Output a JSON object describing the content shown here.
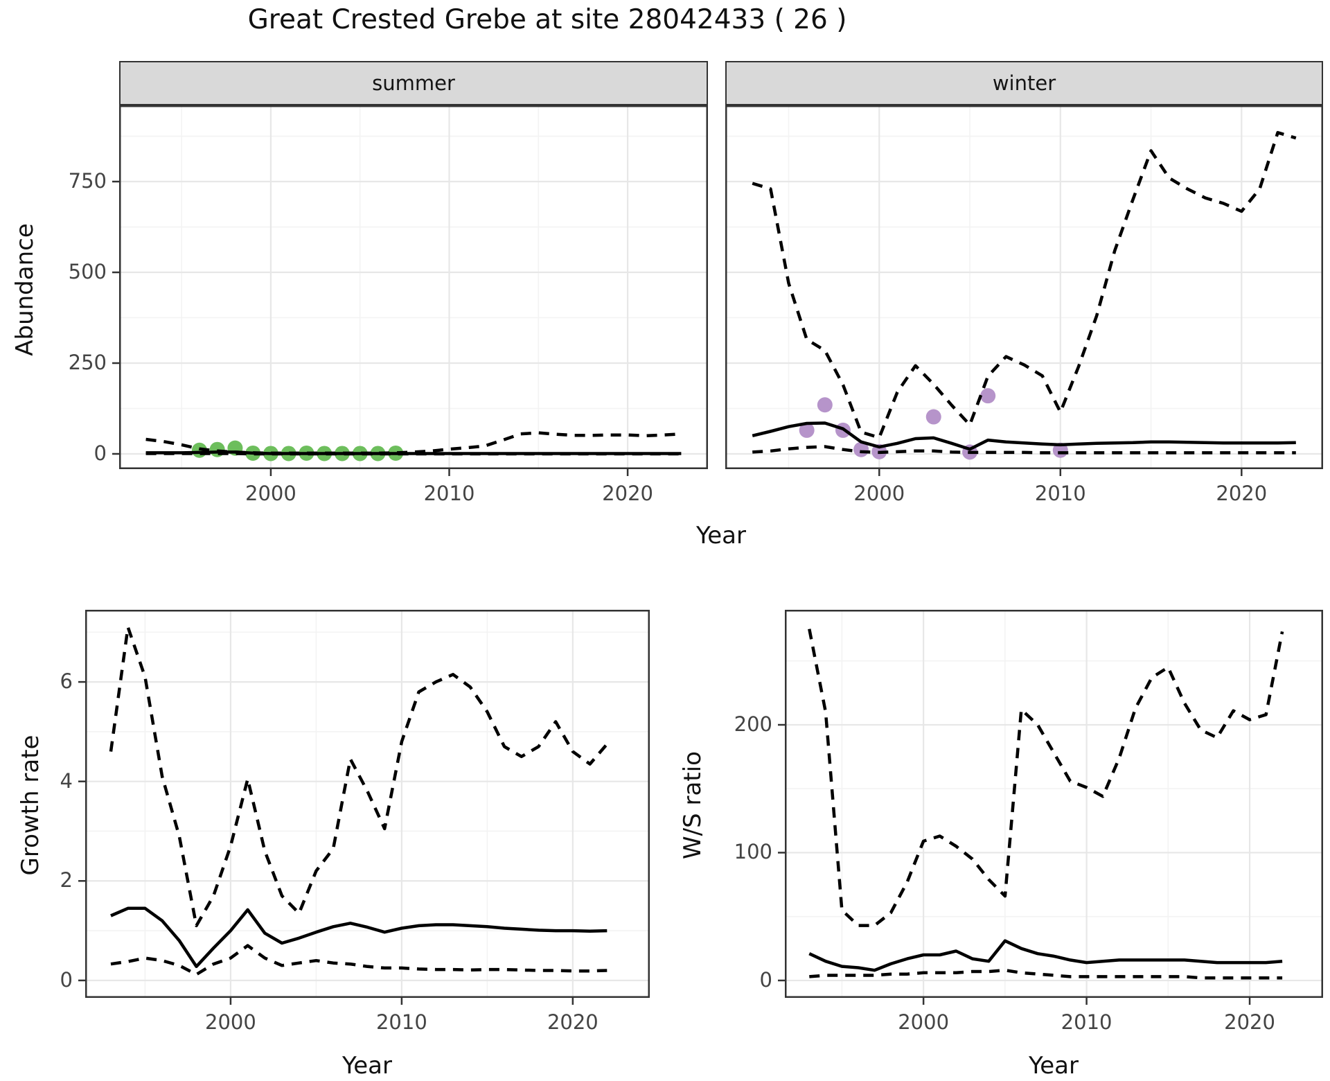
{
  "title": "Great Crested Grebe at site 28042433 ( 26 )",
  "facets": {
    "summer": "summer",
    "winter": "winter"
  },
  "axis_labels": {
    "y_top": "Abundance",
    "x": "Year",
    "y_growth": "Growth rate",
    "y_ws": "W/S ratio"
  },
  "colors": {
    "summer_points": "#6dbe5c",
    "winter_points": "#b694ca",
    "line": "#000000",
    "strip_bg": "#d9d9d9",
    "panel_border": "#333333",
    "grid_major": "#e7e7e7",
    "grid_minor": "#f3f3f3",
    "tick_mark": "#333333",
    "tick_label": "#444444"
  },
  "chart_data": [
    {
      "id": "summer",
      "type": "line",
      "facet": "summer",
      "title": "",
      "xlabel": "Year",
      "ylabel": "Abundance",
      "xlim": [
        1991.5,
        2024.5
      ],
      "ylim": [
        -42,
        960
      ],
      "x_ticks": [
        2000,
        2010,
        2020
      ],
      "x_minor": [
        1995,
        2005,
        2015
      ],
      "y_ticks": [
        0,
        250,
        500,
        750
      ],
      "y_minor": [
        125,
        375,
        625,
        875
      ],
      "y_labels_visible": true,
      "x": [
        1993,
        1994,
        1995,
        1996,
        1997,
        1998,
        1999,
        2000,
        2001,
        2002,
        2003,
        2004,
        2005,
        2006,
        2007,
        2008,
        2009,
        2010,
        2011,
        2012,
        2013,
        2014,
        2015,
        2016,
        2017,
        2018,
        2019,
        2020,
        2021,
        2022,
        2023
      ],
      "series": [
        {
          "name": "modelled median",
          "style": "solid",
          "values": [
            3,
            3,
            3,
            4,
            5,
            5,
            2,
            1,
            1,
            1,
            1,
            1,
            1,
            1,
            1,
            1,
            1,
            1,
            1,
            1,
            1,
            1,
            1,
            1,
            1,
            1,
            1,
            1,
            1,
            1,
            1
          ]
        },
        {
          "name": "upper credible interval",
          "style": "dashed",
          "values": [
            40,
            34,
            25,
            14,
            8,
            5,
            3,
            2,
            2,
            2,
            2,
            2,
            2,
            2,
            3,
            5,
            8,
            13,
            17,
            22,
            38,
            55,
            58,
            54,
            51,
            51,
            52,
            52,
            50,
            52,
            55
          ]
        },
        {
          "name": "lower credible interval",
          "style": "dashed",
          "values": [
            1,
            1,
            1,
            1,
            1,
            1,
            0,
            0,
            0,
            0,
            0,
            0,
            0,
            0,
            0,
            0,
            0,
            0,
            0,
            0,
            0,
            0,
            0,
            0,
            0,
            0,
            0,
            0,
            0,
            0,
            0
          ]
        }
      ],
      "points": {
        "name": "observed summer counts",
        "color_key": "summer_points",
        "x": [
          1996,
          1997,
          1998,
          1999,
          2000,
          2001,
          2002,
          2003,
          2004,
          2005,
          2006,
          2007
        ],
        "y": [
          10,
          12,
          16,
          2,
          1,
          1,
          2,
          1,
          1,
          1,
          1,
          2
        ]
      }
    },
    {
      "id": "winter",
      "type": "line",
      "facet": "winter",
      "title": "",
      "xlabel": "Year",
      "ylabel": "Abundance",
      "xlim": [
        1991.5,
        2024.5
      ],
      "ylim": [
        -42,
        960
      ],
      "x_ticks": [
        2000,
        2010,
        2020
      ],
      "x_minor": [
        1995,
        2005,
        2015
      ],
      "y_ticks": [
        0,
        250,
        500,
        750
      ],
      "y_minor": [
        125,
        375,
        625,
        875
      ],
      "y_labels_visible": false,
      "x": [
        1993,
        1994,
        1995,
        1996,
        1997,
        1998,
        1999,
        2000,
        2001,
        2002,
        2003,
        2004,
        2005,
        2006,
        2007,
        2008,
        2009,
        2010,
        2011,
        2012,
        2013,
        2014,
        2015,
        2016,
        2017,
        2018,
        2019,
        2020,
        2021,
        2022,
        2023
      ],
      "series": [
        {
          "name": "modelled median",
          "style": "solid",
          "values": [
            50,
            62,
            75,
            84,
            85,
            69,
            33,
            19,
            29,
            42,
            44,
            29,
            13,
            38,
            33,
            30,
            27,
            25,
            27,
            29,
            30,
            31,
            33,
            33,
            32,
            31,
            30,
            30,
            30,
            30,
            31
          ]
        },
        {
          "name": "upper credible interval",
          "style": "dashed",
          "values": [
            745,
            730,
            470,
            315,
            285,
            190,
            60,
            45,
            170,
            243,
            192,
            134,
            80,
            214,
            268,
            245,
            215,
            115,
            240,
            380,
            560,
            700,
            835,
            760,
            730,
            705,
            690,
            668,
            730,
            885,
            870
          ]
        },
        {
          "name": "lower credible interval",
          "style": "dashed",
          "values": [
            5,
            8,
            14,
            18,
            20,
            12,
            6,
            4,
            6,
            8,
            8,
            5,
            4,
            4,
            4,
            4,
            3,
            3,
            3,
            3,
            3,
            3,
            3,
            3,
            3,
            3,
            3,
            3,
            3,
            3,
            3
          ]
        }
      ],
      "points": {
        "name": "observed winter counts",
        "color_key": "winter_points",
        "x": [
          1996,
          1997,
          1998,
          1999,
          2000,
          2003,
          2005,
          2006,
          2010
        ],
        "y": [
          65,
          135,
          65,
          12,
          6,
          102,
          5,
          160,
          10
        ]
      }
    },
    {
      "id": "growth",
      "type": "line",
      "facet": "",
      "title": "",
      "xlabel": "Year",
      "ylabel": "Growth rate",
      "xlim": [
        1991.5,
        2024.5
      ],
      "ylim": [
        -0.35,
        7.45
      ],
      "x_ticks": [
        2000,
        2010,
        2020
      ],
      "x_minor": [
        1995,
        2005,
        2015
      ],
      "y_ticks": [
        0,
        2,
        4,
        6
      ],
      "y_minor": [
        1,
        3,
        5,
        7
      ],
      "y_labels_visible": true,
      "x": [
        1993,
        1994,
        1995,
        1996,
        1997,
        1998,
        1999,
        2000,
        2001,
        2002,
        2003,
        2004,
        2005,
        2006,
        2007,
        2008,
        2009,
        2010,
        2011,
        2012,
        2013,
        2014,
        2015,
        2016,
        2017,
        2018,
        2019,
        2020,
        2021,
        2022
      ],
      "series": [
        {
          "name": "modelled median",
          "style": "solid",
          "values": [
            1.3,
            1.45,
            1.45,
            1.2,
            0.8,
            0.28,
            0.65,
            1.0,
            1.42,
            0.95,
            0.75,
            0.85,
            0.97,
            1.08,
            1.15,
            1.07,
            0.97,
            1.05,
            1.1,
            1.12,
            1.12,
            1.1,
            1.08,
            1.05,
            1.03,
            1.01,
            1.0,
            1.0,
            0.99,
            1.0
          ]
        },
        {
          "name": "upper credible interval",
          "style": "dashed",
          "values": [
            4.6,
            7.1,
            6.1,
            4.1,
            2.9,
            1.1,
            1.7,
            2.7,
            4.05,
            2.6,
            1.7,
            1.35,
            2.2,
            2.65,
            4.45,
            3.8,
            3.05,
            4.8,
            5.8,
            6.0,
            6.15,
            5.9,
            5.4,
            4.7,
            4.5,
            4.7,
            5.2,
            4.6,
            4.35,
            4.75
          ]
        },
        {
          "name": "lower credible interval",
          "style": "dashed",
          "values": [
            0.33,
            0.38,
            0.45,
            0.4,
            0.3,
            0.12,
            0.33,
            0.45,
            0.7,
            0.45,
            0.3,
            0.35,
            0.4,
            0.35,
            0.33,
            0.28,
            0.25,
            0.25,
            0.23,
            0.22,
            0.22,
            0.21,
            0.22,
            0.22,
            0.21,
            0.2,
            0.2,
            0.19,
            0.19,
            0.2
          ]
        }
      ],
      "points": null
    },
    {
      "id": "ws",
      "type": "line",
      "facet": "",
      "title": "",
      "xlabel": "Year",
      "ylabel": "W/S ratio",
      "xlim": [
        1991.5,
        2024.5
      ],
      "ylim": [
        -13.6,
        290
      ],
      "x_ticks": [
        2000,
        2010,
        2020
      ],
      "x_minor": [
        1995,
        2005,
        2015
      ],
      "y_ticks": [
        0,
        100,
        200
      ],
      "y_minor": [
        50,
        150,
        250
      ],
      "y_labels_visible": true,
      "x": [
        1993,
        1994,
        1995,
        1996,
        1997,
        1998,
        1999,
        2000,
        2001,
        2002,
        2003,
        2004,
        2005,
        2006,
        2007,
        2008,
        2009,
        2010,
        2011,
        2012,
        2013,
        2014,
        2015,
        2016,
        2017,
        2018,
        2019,
        2020,
        2021,
        2022
      ],
      "series": [
        {
          "name": "modelled median",
          "style": "solid",
          "values": [
            21,
            15,
            11,
            10,
            8,
            13,
            17,
            20,
            20,
            23,
            17,
            15,
            31,
            25,
            21,
            19,
            16,
            14,
            15,
            16,
            16,
            16,
            16,
            16,
            15,
            14,
            14,
            14,
            14,
            15
          ]
        },
        {
          "name": "upper credible interval",
          "style": "dashed",
          "values": [
            275,
            210,
            55,
            43,
            43,
            53,
            77,
            109,
            113,
            105,
            95,
            79,
            66,
            212,
            200,
            178,
            156,
            151,
            144,
            174,
            213,
            237,
            245,
            217,
            196,
            190,
            211,
            204,
            208,
            273
          ]
        },
        {
          "name": "lower credible interval",
          "style": "dashed",
          "values": [
            3,
            4,
            4,
            4,
            4,
            5,
            5,
            6,
            6,
            6,
            7,
            7,
            8,
            6,
            5,
            4,
            3,
            3,
            3,
            3,
            3,
            3,
            3,
            3,
            2,
            2,
            2,
            2,
            2,
            2
          ]
        }
      ],
      "points": null
    }
  ]
}
